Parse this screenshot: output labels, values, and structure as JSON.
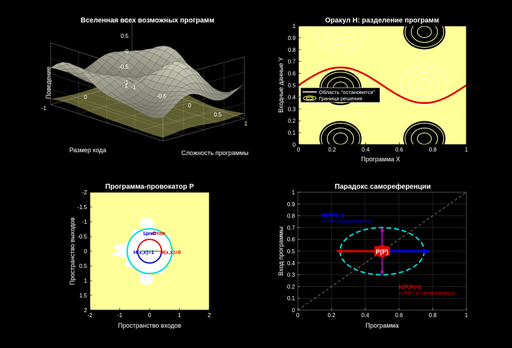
{
  "figure": {
    "background": "#000000",
    "panel_color": "#ffff99"
  },
  "chart_data": [
    {
      "id": "universe",
      "type": "surface3d",
      "title": "Вселенная всех возможных программ",
      "xlabel": "Сложность программы",
      "ylabel": "Размер кода",
      "zlabel": "Поведение",
      "xticks": [
        "-1",
        "-0.5",
        "0",
        "0.5",
        "1"
      ],
      "yticks": [
        "-1",
        "0",
        "1"
      ],
      "zticks": [
        "-1",
        "-0.5",
        "0",
        "0.5",
        "1"
      ],
      "xlim": [
        -1,
        1
      ],
      "ylim": [
        -1,
        1
      ],
      "zlim": [
        -1,
        1
      ],
      "surface_color": "#b0b0b0",
      "shadow_color": "#d8d870"
    },
    {
      "id": "oracle",
      "type": "contour",
      "title": "Оракул H: разделение программ",
      "xlabel": "Программа X",
      "ylabel": "Входные данные Y",
      "xticks": [
        "0",
        "0.2",
        "0.4",
        "0.6",
        "0.8",
        "1"
      ],
      "yticks": [
        "0",
        "0.1",
        "0.2",
        "0.3",
        "0.4",
        "0.5",
        "0.6",
        "0.7",
        "0.8",
        "0.9",
        "1"
      ],
      "xlim": [
        0,
        1
      ],
      "ylim": [
        0,
        1
      ],
      "legend": [
        {
          "label": "Область \"остановится\"",
          "color": "#ffffff"
        },
        {
          "label": "Граница решения",
          "color": "#ffff66"
        }
      ],
      "boundary": {
        "amplitude": 0.15,
        "offset": 0.5,
        "period": 1.0,
        "color": "#dd0000"
      },
      "blobs": [
        {
          "x": 0.25,
          "y": 0.05
        },
        {
          "x": 0.25,
          "y": 0.48
        },
        {
          "x": 0.75,
          "y": 0.95
        },
        {
          "x": 0.75,
          "y": 0.05
        }
      ]
    },
    {
      "id": "provocateur",
      "type": "fractal",
      "title": "Программа-провокатор P",
      "xlabel": "Пространство входов",
      "ylabel": "Пространство выходов",
      "xticks": [
        "-2",
        "-1",
        "0",
        "1",
        "2"
      ],
      "yticks": [
        "-2",
        "-1.5",
        "-1",
        "-0.5",
        "0",
        "0.5",
        "1",
        "1.5",
        "2"
      ],
      "xlim": [
        -2,
        2
      ],
      "ylim": [
        -2,
        2
      ],
      "circles": [
        {
          "name": "outer",
          "radius": 0.75,
          "color": "#00dddd"
        },
        {
          "name": "red",
          "radius": 0.4,
          "color": "#dd0000"
        },
        {
          "name": "blue",
          "radius": 0.4,
          "color": "#0000cc"
        }
      ],
      "annotations": {
        "cycle": "Цикл",
        "stop": "Стоп",
        "h_one": "H(x,x)=1",
        "h_zero": "H(x,x)=0"
      }
    },
    {
      "id": "paradox",
      "type": "diagram-plot",
      "title": "Парадокс самореференции",
      "xlabel": "Программа",
      "ylabel": "Вход программы",
      "xticks": [
        "0",
        "0.2",
        "0.4",
        "0.6",
        "0.8",
        "1"
      ],
      "yticks": [
        "0",
        "0.1",
        "0.2",
        "0.3",
        "0.4",
        "0.5",
        "0.6",
        "0.7",
        "0.8",
        "0.9",
        "1"
      ],
      "xlim": [
        0,
        1
      ],
      "ylim": [
        0,
        1
      ],
      "center": {
        "x": 0.5,
        "y": 0.5,
        "label": "P(P)"
      },
      "ellipse": {
        "rx": 0.25,
        "ry": 0.2,
        "color": "#00dddd"
      },
      "arrows": [
        {
          "dx": -0.27,
          "dy": 0,
          "color": "#dd0000"
        },
        {
          "dx": 0.28,
          "dy": 0,
          "color": "#0000ff"
        },
        {
          "dx": 0,
          "dy": 0.2,
          "color": "#dd00dd"
        },
        {
          "dx": 0,
          "dy": -0.2,
          "color": "#dd00dd"
        }
      ],
      "annotations": [
        {
          "text": "H(P,P)=1",
          "sub": "⇒ P(P) зацикливается",
          "x": 0.14,
          "y": 0.79,
          "color": "#0000ff"
        },
        {
          "text": "H(P,P)=0",
          "sub": "⇒ P(P) останавливается",
          "x": 0.6,
          "y": 0.18,
          "color": "#dd0000"
        }
      ]
    }
  ]
}
